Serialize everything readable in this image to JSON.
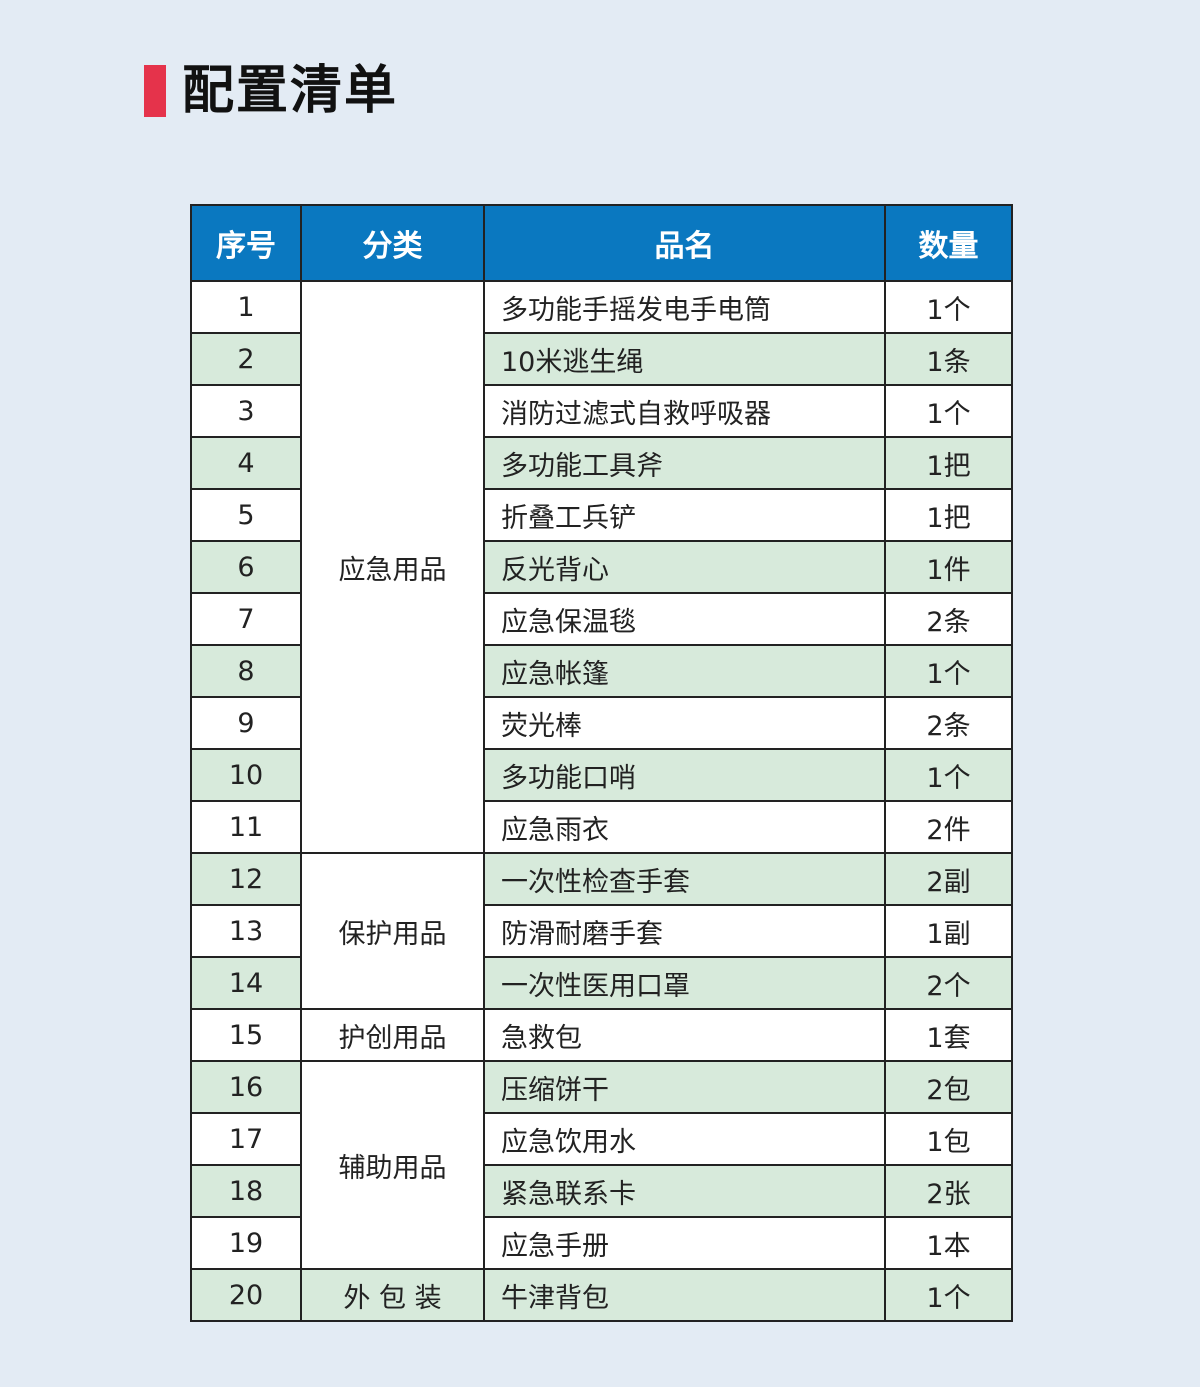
{
  "title": "配置清单",
  "colors": {
    "accent": "#e5334b",
    "header": "#0a78c0",
    "stripe": "#d7eadb",
    "background": "#e3ebf4"
  },
  "headers": [
    "序号",
    "分类",
    "品名",
    "数量"
  ],
  "categories": [
    "应急用品",
    "保护用品",
    "护创用品",
    "辅助用品",
    "外 包 装"
  ],
  "rows": [
    {
      "no": "1",
      "name": "多功能手摇发电手电筒",
      "qty": "1个"
    },
    {
      "no": "2",
      "name": "10米逃生绳",
      "qty": "1条"
    },
    {
      "no": "3",
      "name": "消防过滤式自救呼吸器",
      "qty": "1个"
    },
    {
      "no": "4",
      "name": "多功能工具斧",
      "qty": "1把"
    },
    {
      "no": "5",
      "name": "折叠工兵铲",
      "qty": "1把"
    },
    {
      "no": "6",
      "name": "反光背心",
      "qty": "1件"
    },
    {
      "no": "7",
      "name": "应急保温毯",
      "qty": "2条"
    },
    {
      "no": "8",
      "name": "应急帐篷",
      "qty": "1个"
    },
    {
      "no": "9",
      "name": "荧光棒",
      "qty": "2条"
    },
    {
      "no": "10",
      "name": "多功能口哨",
      "qty": "1个"
    },
    {
      "no": "11",
      "name": "应急雨衣",
      "qty": "2件"
    },
    {
      "no": "12",
      "name": "一次性检查手套",
      "qty": "2副"
    },
    {
      "no": "13",
      "name": "防滑耐磨手套",
      "qty": "1副"
    },
    {
      "no": "14",
      "name": "一次性医用口罩",
      "qty": "2个"
    },
    {
      "no": "15",
      "name": "急救包",
      "qty": "1套"
    },
    {
      "no": "16",
      "name": "压缩饼干",
      "qty": "2包"
    },
    {
      "no": "17",
      "name": "应急饮用水",
      "qty": "1包"
    },
    {
      "no": "18",
      "name": "紧急联系卡",
      "qty": "2张"
    },
    {
      "no": "19",
      "name": "应急手册",
      "qty": "1本"
    },
    {
      "no": "20",
      "name": "牛津背包",
      "qty": "1个"
    }
  ]
}
